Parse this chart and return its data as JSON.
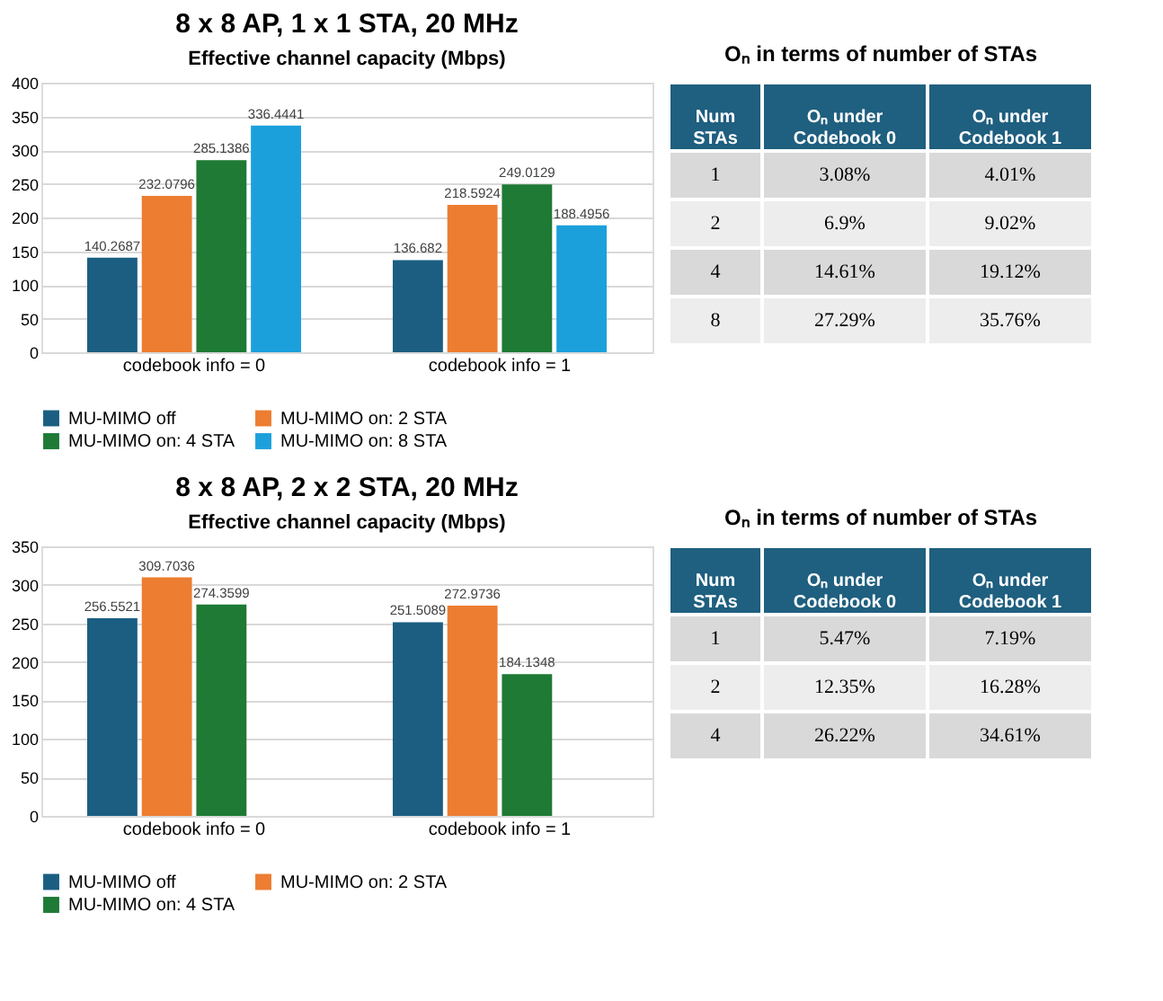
{
  "chart_data": [
    {
      "type": "bar",
      "title": "8 x 8 AP, 1 x 1 STA, 20 MHz",
      "subtitle": "Effective channel capacity (Mbps)",
      "categories": [
        "codebook info = 0",
        "codebook info = 1"
      ],
      "series": [
        {
          "name": "MU-MIMO off",
          "color": "#1b5e82",
          "values": [
            140.2687,
            136.682
          ]
        },
        {
          "name": "MU-MIMO on: 2 STA",
          "color": "#ed7d31",
          "values": [
            232.0796,
            218.5924
          ]
        },
        {
          "name": "MU-MIMO on: 4 STA",
          "color": "#1e7a35",
          "values": [
            285.1386,
            249.0129
          ]
        },
        {
          "name": "MU-MIMO on: 8 STA",
          "color": "#1ca0dc",
          "values": [
            336.4441,
            188.4956
          ]
        }
      ],
      "ylim": [
        0,
        400
      ],
      "yticks": [
        0,
        50,
        100,
        150,
        200,
        250,
        300,
        350,
        400
      ],
      "grid": "y",
      "legend": "bottom",
      "data_labels": true
    },
    {
      "type": "other",
      "title": "Oₙ in terms of number of STAs",
      "ylabel": "Num STAs",
      "categories": [
        "Oₙ under Codebook 0",
        "Oₙ under Codebook 1"
      ],
      "y_categories": [
        "1",
        "2",
        "4",
        "8"
      ],
      "cell_labels": [
        [
          "3.08%",
          "4.01%"
        ],
        [
          "6.9%",
          "9.02%"
        ],
        [
          "14.61%",
          "19.12%"
        ],
        [
          "27.29%",
          "35.76%"
        ]
      ]
    },
    {
      "type": "bar",
      "title": "8 x 8 AP, 2 x 2 STA, 20 MHz",
      "subtitle": "Effective channel capacity (Mbps)",
      "categories": [
        "codebook info = 0",
        "codebook info = 1"
      ],
      "series": [
        {
          "name": "MU-MIMO off",
          "color": "#1b5e82",
          "values": [
            256.5521,
            251.5089
          ]
        },
        {
          "name": "MU-MIMO on: 2 STA",
          "color": "#ed7d31",
          "values": [
            309.7036,
            272.9736
          ]
        },
        {
          "name": "MU-MIMO on: 4 STA",
          "color": "#1e7a35",
          "values": [
            274.3599,
            184.1348
          ]
        }
      ],
      "ylim": [
        0,
        350
      ],
      "yticks": [
        0,
        50,
        100,
        150,
        200,
        250,
        300,
        350
      ],
      "grid": "y",
      "legend": "bottom",
      "data_labels": true
    },
    {
      "type": "other",
      "title": "Oₙ in terms of number of STAs",
      "ylabel": "Num STAs",
      "categories": [
        "Oₙ under Codebook 0",
        "Oₙ under Codebook 1"
      ],
      "y_categories": [
        "1",
        "2",
        "4"
      ],
      "cell_labels": [
        [
          "5.47%",
          "7.19%"
        ],
        [
          "12.35%",
          "16.28%"
        ],
        [
          "26.22%",
          "34.61%"
        ]
      ]
    }
  ]
}
